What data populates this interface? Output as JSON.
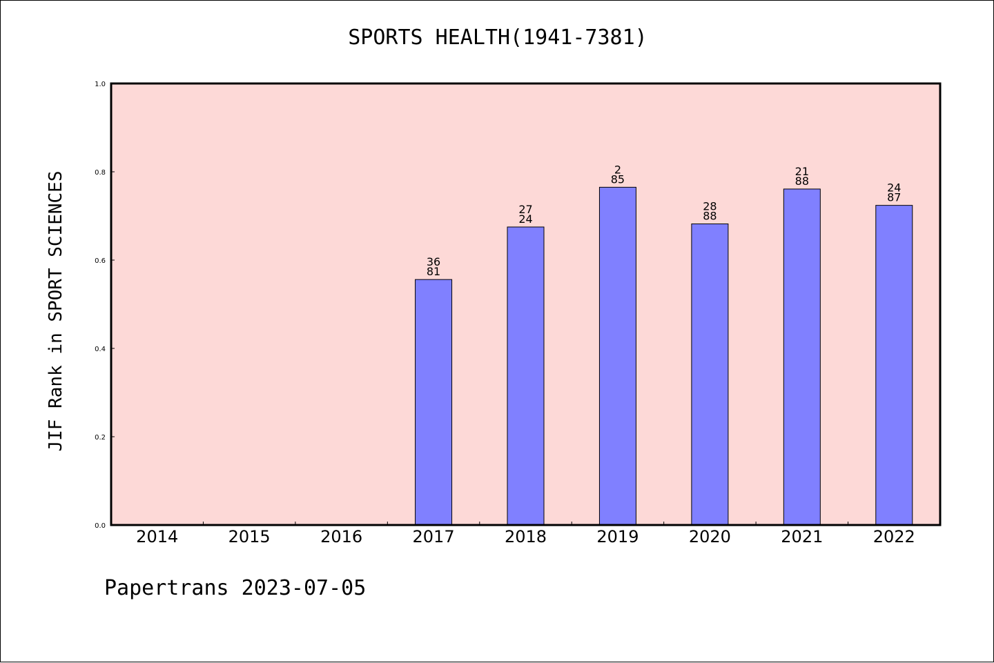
{
  "chart_data": {
    "type": "bar",
    "title": "SPORTS HEALTH(1941-7381)",
    "ylabel": "JIF Rank in SPORT SCIENCES",
    "xlabel": "",
    "ylim": [
      0,
      1.0
    ],
    "yticks": [
      "0.0",
      "0.2",
      "0.4",
      "0.6",
      "0.8",
      "1.0"
    ],
    "categories": [
      "2014",
      "2015",
      "2016",
      "2017",
      "2018",
      "2019",
      "2020",
      "2021",
      "2022"
    ],
    "values": [
      null,
      null,
      null,
      0.556,
      0.675,
      0.765,
      0.682,
      0.761,
      0.724
    ],
    "labels": [
      null,
      null,
      null,
      [
        "36",
        "81"
      ],
      [
        "27",
        "24"
      ],
      [
        "2",
        "85"
      ],
      [
        "28",
        "88"
      ],
      [
        "21",
        "88"
      ],
      [
        "24",
        "87"
      ]
    ],
    "colors": {
      "plot_background": "#fdd9d7",
      "bar_fill": "#8080ff",
      "bar_edge": "#000000"
    },
    "grid": false
  },
  "footer": "Papertrans 2023-07-05"
}
